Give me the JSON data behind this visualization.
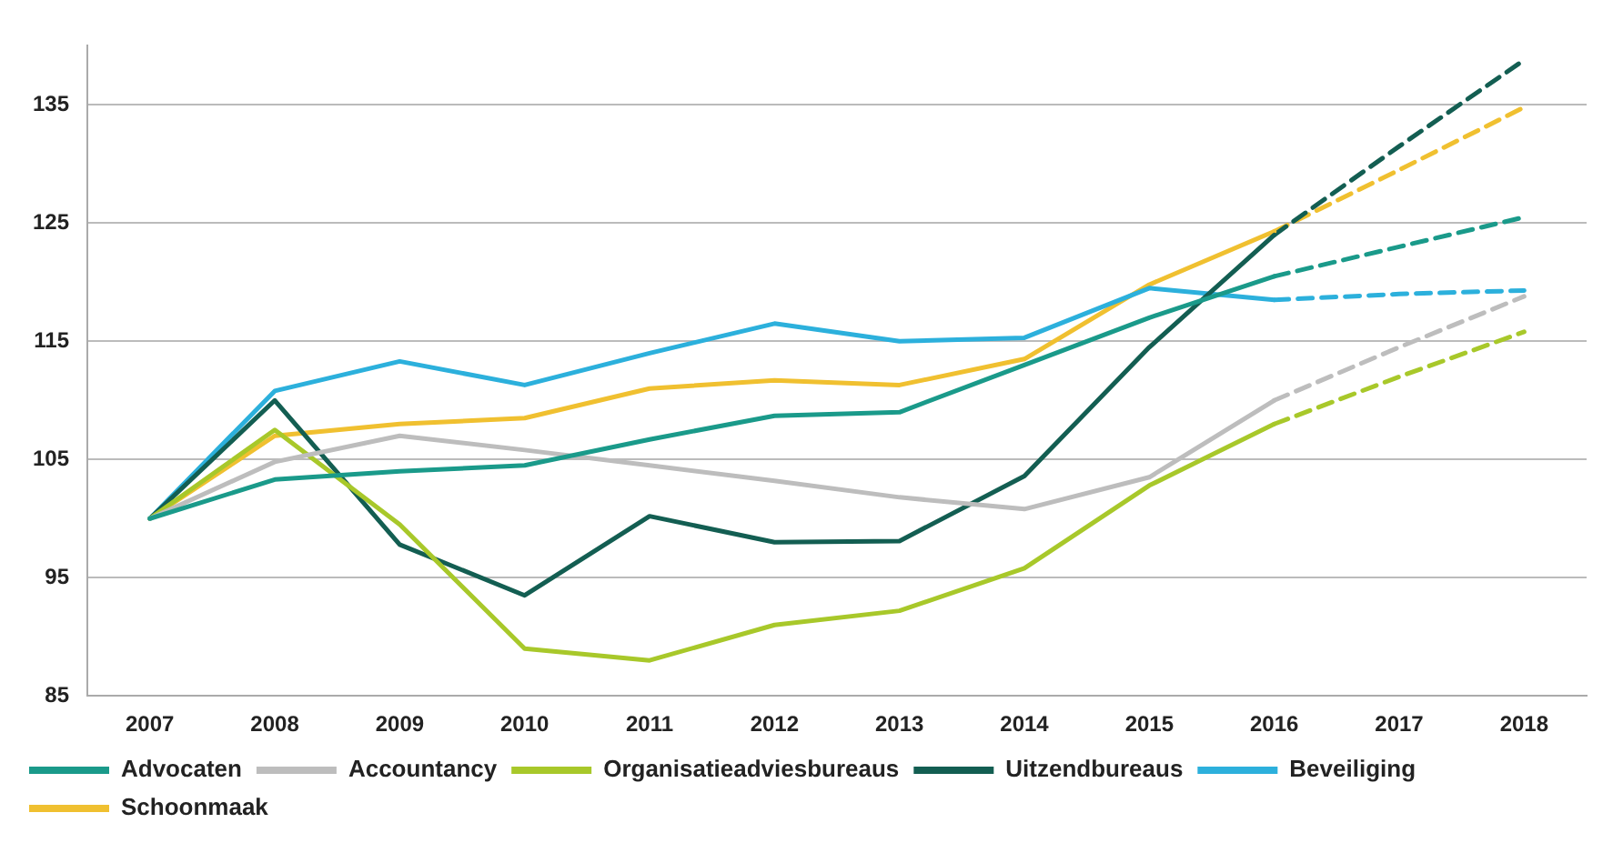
{
  "chart_data": {
    "type": "line",
    "categories": [
      "2007",
      "2008",
      "2009",
      "2010",
      "2011",
      "2012",
      "2013",
      "2014",
      "2015",
      "2016",
      "2017",
      "2018"
    ],
    "ylim": [
      85,
      140
    ],
    "yticks": [
      85,
      95,
      105,
      115,
      125,
      135
    ],
    "grid": "y",
    "legend": "bottom",
    "marker": "none",
    "series": [
      {
        "name": "Advocaten",
        "color": "#1a9a8a",
        "line_style": "solid",
        "values": [
          100,
          103.3,
          104,
          104.5,
          106.7,
          108.7,
          109,
          113,
          117,
          120.5,
          null,
          null
        ]
      },
      {
        "name": "Accountancy",
        "color": "#bdbdbd",
        "line_style": "solid",
        "values": [
          100,
          104.8,
          107,
          105.8,
          104.5,
          103.2,
          101.8,
          100.8,
          103.5,
          110,
          null,
          null
        ]
      },
      {
        "name": "Organisatieadviesbureaus",
        "color": "#a8c82a",
        "line_style": "solid",
        "values": [
          100,
          107.5,
          99.5,
          89,
          88,
          91,
          92.2,
          95.8,
          102.8,
          108,
          null,
          null
        ]
      },
      {
        "name": "Uitzendbureaus",
        "color": "#135e52",
        "line_style": "solid",
        "values": [
          100,
          110,
          97.8,
          93.5,
          100.2,
          98,
          98.1,
          103.6,
          114.5,
          124,
          null,
          null
        ]
      },
      {
        "name": "Beveiliging",
        "color": "#2cb0dc",
        "line_style": "solid",
        "values": [
          100,
          110.8,
          113.3,
          111.3,
          114,
          116.5,
          115,
          115.3,
          119.5,
          118.5,
          null,
          null
        ]
      },
      {
        "name": "Schoonmaak",
        "color": "#f0c030",
        "line_style": "solid",
        "values": [
          100,
          107,
          108,
          108.5,
          111,
          111.7,
          111.3,
          113.5,
          119.8,
          124.3,
          null,
          null
        ]
      },
      {
        "color": "#1a9a8a",
        "line_style": "dashed",
        "values": [
          null,
          null,
          null,
          null,
          null,
          null,
          null,
          null,
          null,
          120.5,
          123,
          125.5
        ]
      },
      {
        "color": "#bdbdbd",
        "line_style": "dashed",
        "values": [
          null,
          null,
          null,
          null,
          null,
          null,
          null,
          null,
          null,
          110,
          114.5,
          118.8
        ]
      },
      {
        "color": "#a8c82a",
        "line_style": "dashed",
        "values": [
          null,
          null,
          null,
          null,
          null,
          null,
          null,
          null,
          null,
          108,
          112,
          115.8
        ]
      },
      {
        "color": "#135e52",
        "line_style": "dashed",
        "values": [
          null,
          null,
          null,
          null,
          null,
          null,
          null,
          null,
          null,
          124,
          131.5,
          138.8
        ]
      },
      {
        "color": "#2cb0dc",
        "line_style": "dashed",
        "values": [
          null,
          null,
          null,
          null,
          null,
          null,
          null,
          null,
          null,
          118.5,
          119,
          119.3
        ]
      },
      {
        "color": "#f0c030",
        "line_style": "dashed",
        "values": [
          null,
          null,
          null,
          null,
          null,
          null,
          null,
          null,
          null,
          124.3,
          129.5,
          134.8
        ]
      }
    ]
  }
}
